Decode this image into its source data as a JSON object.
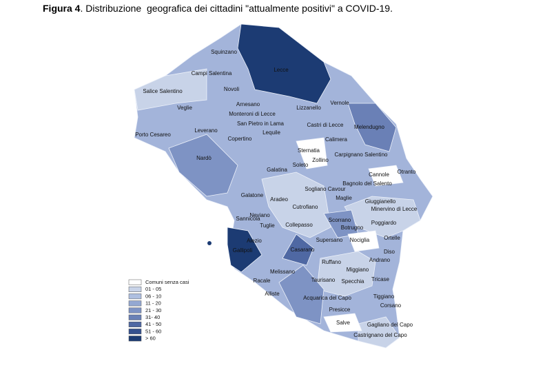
{
  "title": {
    "label": "Figura 4",
    "text": ". Distribuzione  geografica dei cittadini \"attualmente positivi\" a COVID-19."
  },
  "legend": [
    {
      "label": "Comuni senza casi",
      "color": "#ffffff"
    },
    {
      "label": "01 - 05",
      "color": "#c8d3e8"
    },
    {
      "label": "06 - 10",
      "color": "#aebfe0"
    },
    {
      "label": "11 - 20",
      "color": "#94a8d2"
    },
    {
      "label": "21 - 30",
      "color": "#7e93c4"
    },
    {
      "label": "31- 40",
      "color": "#6a80b6"
    },
    {
      "label": "41 - 50",
      "color": "#4f68a3"
    },
    {
      "label": "51 - 60",
      "color": "#34508e"
    },
    {
      "label": "> 60",
      "color": "#1c3b73"
    }
  ],
  "places": [
    "Squinzano",
    "Lecce",
    "Campi Salentina",
    "Salice Salentino",
    "Novoli",
    "Vernole",
    "Arnesano",
    "Lizzanello",
    "Veglie",
    "Monteroni di Lecce",
    "Melendugno",
    "Castri di Lecce",
    "San Pietro in Lama",
    "Leverano",
    "Lequile",
    "Porto Cesareo",
    "Copertino",
    "Calimera",
    "Sternatia",
    "Carpignano Salentino",
    "Nardò",
    "Zollino",
    "Soleto",
    "Otranto",
    "Galatina",
    "Cannole",
    "Bagnolo del Salento",
    "Sogliano Cavour",
    "Galatone",
    "Aradeo",
    "Maglie",
    "Giuggianello",
    "Cutrofiano",
    "Minervino di Lecce",
    "Neviano",
    "Sannicola",
    "Scorrano",
    "Poggiardo",
    "Tuglie",
    "Collepasso",
    "Botrugno",
    "Ortelle",
    "Supersano",
    "Nociglia",
    "Alezio",
    "Gallipoli",
    "Casarano",
    "Diso",
    "Ruffano",
    "Andrano",
    "Melissano",
    "Miggiano",
    "Racale",
    "Taurisano",
    "Specchia",
    "Tricase",
    "Alliste",
    "Acquarica del Capo",
    "Tiggiano",
    "Corsano",
    "Presicce",
    "Salve",
    "Gagliano del Capo",
    "Castrignano del Capo"
  ]
}
